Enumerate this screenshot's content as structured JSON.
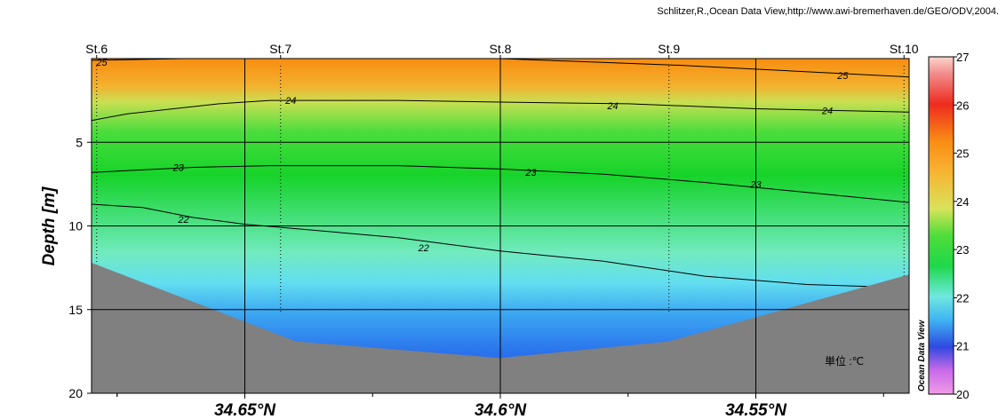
{
  "credit": "Schlitzer,R.,Ocean Data View,http://www.awi-bremerhaven.de/GEO/ODV,2004.",
  "watermark": "Ocean Data View",
  "unit_label": "単位 :℃",
  "chart_data": {
    "type": "heatmap",
    "variable": "temperature",
    "ylabel": "Depth [m]",
    "y_axis": {
      "ticks": [
        5,
        10,
        15,
        20
      ],
      "range": [
        0,
        20
      ],
      "inverted": true
    },
    "x_axis": {
      "ticks": [
        "34.65°N",
        "34.6°N",
        "34.55°N"
      ],
      "tick_values": [
        34.65,
        34.6,
        34.55
      ],
      "range": [
        34.68,
        34.52
      ],
      "minor_step": 0.025
    },
    "grid": true,
    "stations": [
      {
        "name": "St.6",
        "lat": 34.679
      },
      {
        "name": "St.7",
        "lat": 34.643
      },
      {
        "name": "St.8",
        "lat": 34.6
      },
      {
        "name": "St.9",
        "lat": 34.567
      },
      {
        "name": "St.10",
        "lat": 34.521
      }
    ],
    "bottom_profile": [
      {
        "lat": 34.68,
        "depth": 12.2
      },
      {
        "lat": 34.64,
        "depth": 16.9
      },
      {
        "lat": 34.6,
        "depth": 17.9
      },
      {
        "lat": 34.567,
        "depth": 16.9
      },
      {
        "lat": 34.52,
        "depth": 12.9
      }
    ],
    "contours": [
      {
        "level": 25,
        "points": [
          [
            34.68,
            0.1
          ],
          [
            34.662,
            0.0
          ],
          [
            34.6,
            0.0
          ],
          [
            34.565,
            0.4
          ],
          [
            34.52,
            1.1
          ]
        ],
        "labels": [
          [
            34.678,
            0.2
          ],
          [
            34.533,
            1.0
          ]
        ]
      },
      {
        "level": 24,
        "points": [
          [
            34.68,
            3.7
          ],
          [
            34.673,
            3.3
          ],
          [
            34.655,
            2.7
          ],
          [
            34.645,
            2.5
          ],
          [
            34.62,
            2.5
          ],
          [
            34.6,
            2.6
          ],
          [
            34.575,
            2.7
          ],
          [
            34.55,
            3.0
          ],
          [
            34.52,
            3.2
          ]
        ],
        "labels": [
          [
            34.641,
            2.5
          ],
          [
            34.578,
            2.8
          ],
          [
            34.536,
            3.1
          ]
        ]
      },
      {
        "level": 23,
        "points": [
          [
            34.68,
            6.8
          ],
          [
            34.66,
            6.5
          ],
          [
            34.645,
            6.4
          ],
          [
            34.62,
            6.4
          ],
          [
            34.6,
            6.6
          ],
          [
            34.58,
            6.9
          ],
          [
            34.56,
            7.4
          ],
          [
            34.54,
            8.0
          ],
          [
            34.52,
            8.6
          ]
        ],
        "labels": [
          [
            34.663,
            6.5
          ],
          [
            34.594,
            6.8
          ],
          [
            34.55,
            7.5
          ]
        ]
      },
      {
        "level": 22,
        "points": [
          [
            34.68,
            8.7
          ],
          [
            34.67,
            8.9
          ],
          [
            34.66,
            9.5
          ],
          [
            34.65,
            9.9
          ],
          [
            34.62,
            10.7
          ],
          [
            34.6,
            11.5
          ],
          [
            34.58,
            12.1
          ],
          [
            34.56,
            13.0
          ],
          [
            34.54,
            13.5
          ],
          [
            34.52,
            13.7
          ]
        ],
        "labels": [
          [
            34.662,
            9.6
          ],
          [
            34.615,
            11.3
          ]
        ]
      }
    ],
    "colorbar": {
      "min": 20,
      "max": 27,
      "ticks": [
        20,
        21,
        22,
        23,
        24,
        25,
        26,
        27
      ]
    },
    "colors": {
      "land": "#808080",
      "grid": "#000000",
      "contour": "#000000"
    }
  }
}
